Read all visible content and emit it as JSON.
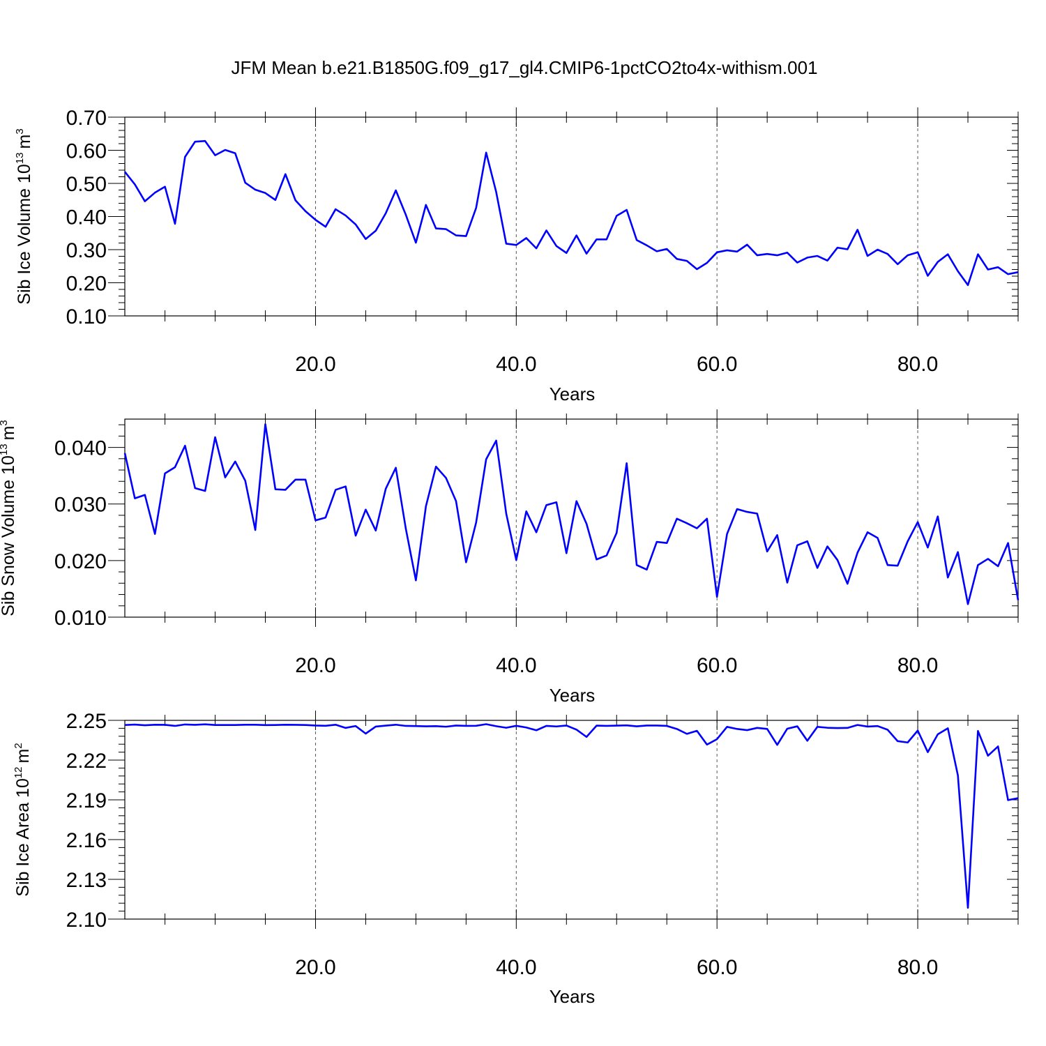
{
  "chart_data": [
    {
      "type": "line",
      "title": "JFM Mean b.e21.B1850G.f09_g17_gl4.CMIP6-1pctCO2to4x-withism.001",
      "xlabel": "Years",
      "ylabel": "Sib Ice Volume 10",
      "ylabel_exp": "13",
      "ylabel_unit": "m",
      "ylabel_unit_exp": "3",
      "xlim": [
        1,
        90
      ],
      "ylim": [
        0.1,
        0.7
      ],
      "xticks": [
        20,
        40,
        60,
        80
      ],
      "xtick_labels": [
        "20.0",
        "40.0",
        "60.0",
        "80.0"
      ],
      "yticks": [
        0.1,
        0.2,
        0.3,
        0.4,
        0.5,
        0.6,
        0.7
      ],
      "ytick_labels": [
        "0.10",
        "0.20",
        "0.30",
        "0.40",
        "0.50",
        "0.60",
        "0.70"
      ],
      "grid": "vertical-dashed",
      "line_color": "#0000ff",
      "x": [
        1,
        2,
        3,
        4,
        5,
        6,
        7,
        8,
        9,
        10,
        11,
        12,
        13,
        14,
        15,
        16,
        17,
        18,
        19,
        20,
        21,
        22,
        23,
        24,
        25,
        26,
        27,
        28,
        29,
        30,
        31,
        32,
        33,
        34,
        35,
        36,
        37,
        38,
        39,
        40,
        41,
        42,
        43,
        44,
        45,
        46,
        47,
        48,
        49,
        50,
        51,
        52,
        53,
        54,
        55,
        56,
        57,
        58,
        59,
        60,
        61,
        62,
        63,
        64,
        65,
        66,
        67,
        68,
        69,
        70,
        71,
        72,
        73,
        74,
        75,
        76,
        77,
        78,
        79,
        80,
        81,
        82,
        83,
        84,
        85,
        86,
        87,
        88,
        89,
        90
      ],
      "values": [
        0.535,
        0.497,
        0.446,
        0.472,
        0.49,
        0.378,
        0.58,
        0.626,
        0.628,
        0.585,
        0.601,
        0.591,
        0.502,
        0.481,
        0.471,
        0.45,
        0.528,
        0.449,
        0.416,
        0.39,
        0.369,
        0.422,
        0.403,
        0.376,
        0.332,
        0.357,
        0.41,
        0.479,
        0.405,
        0.321,
        0.435,
        0.364,
        0.362,
        0.343,
        0.341,
        0.426,
        0.593,
        0.474,
        0.318,
        0.314,
        0.335,
        0.304,
        0.358,
        0.311,
        0.29,
        0.343,
        0.288,
        0.331,
        0.331,
        0.402,
        0.42,
        0.329,
        0.313,
        0.295,
        0.302,
        0.272,
        0.266,
        0.241,
        0.26,
        0.292,
        0.298,
        0.294,
        0.315,
        0.283,
        0.287,
        0.283,
        0.291,
        0.261,
        0.276,
        0.281,
        0.267,
        0.306,
        0.301,
        0.36,
        0.281,
        0.3,
        0.287,
        0.256,
        0.283,
        0.292,
        0.221,
        0.263,
        0.286,
        0.235,
        0.193,
        0.286,
        0.24,
        0.247,
        0.226,
        0.232
      ]
    },
    {
      "type": "line",
      "xlabel": "Years",
      "ylabel": "Sib Snow Volume 10",
      "ylabel_exp": "13",
      "ylabel_unit": "m",
      "ylabel_unit_exp": "3",
      "xlim": [
        1,
        90
      ],
      "ylim": [
        0.01,
        0.045
      ],
      "xticks": [
        20,
        40,
        60,
        80
      ],
      "xtick_labels": [
        "20.0",
        "40.0",
        "60.0",
        "80.0"
      ],
      "yticks": [
        0.01,
        0.02,
        0.03,
        0.04
      ],
      "ytick_labels": [
        "0.010",
        "0.020",
        "0.030",
        "0.040"
      ],
      "grid": "vertical-dashed",
      "line_color": "#0000ff",
      "x": [
        1,
        2,
        3,
        4,
        5,
        6,
        7,
        8,
        9,
        10,
        11,
        12,
        13,
        14,
        15,
        16,
        17,
        18,
        19,
        20,
        21,
        22,
        23,
        24,
        25,
        26,
        27,
        28,
        29,
        30,
        31,
        32,
        33,
        34,
        35,
        36,
        37,
        38,
        39,
        40,
        41,
        42,
        43,
        44,
        45,
        46,
        47,
        48,
        49,
        50,
        51,
        52,
        53,
        54,
        55,
        56,
        57,
        58,
        59,
        60,
        61,
        62,
        63,
        64,
        65,
        66,
        67,
        68,
        69,
        70,
        71,
        72,
        73,
        74,
        75,
        76,
        77,
        78,
        79,
        80,
        81,
        82,
        83,
        84,
        85,
        86,
        87,
        88,
        89,
        90
      ],
      "values": [
        0.039,
        0.031,
        0.0316,
        0.0247,
        0.0354,
        0.0365,
        0.0403,
        0.0328,
        0.0323,
        0.0418,
        0.0347,
        0.0375,
        0.0341,
        0.0254,
        0.0441,
        0.0326,
        0.0325,
        0.0343,
        0.0343,
        0.0271,
        0.0276,
        0.0325,
        0.0331,
        0.0244,
        0.029,
        0.0253,
        0.0327,
        0.0364,
        0.0256,
        0.0165,
        0.0296,
        0.0366,
        0.0346,
        0.0305,
        0.0197,
        0.0267,
        0.0379,
        0.0412,
        0.0283,
        0.0201,
        0.0287,
        0.025,
        0.0298,
        0.0303,
        0.0213,
        0.0305,
        0.0265,
        0.0202,
        0.0209,
        0.0249,
        0.0372,
        0.0192,
        0.0184,
        0.0233,
        0.0231,
        0.0274,
        0.0266,
        0.0257,
        0.0274,
        0.0136,
        0.0247,
        0.0291,
        0.0286,
        0.0283,
        0.0216,
        0.0245,
        0.0161,
        0.0227,
        0.0234,
        0.0187,
        0.0225,
        0.0201,
        0.0159,
        0.0214,
        0.025,
        0.024,
        0.0192,
        0.0191,
        0.0234,
        0.0268,
        0.0223,
        0.0278,
        0.017,
        0.0215,
        0.0123,
        0.0192,
        0.0203,
        0.019,
        0.0231,
        0.013
      ]
    },
    {
      "type": "line",
      "xlabel": "Years",
      "ylabel": "Sib Ice Area 10",
      "ylabel_exp": "12",
      "ylabel_unit": "m",
      "ylabel_unit_exp": "2",
      "xlim": [
        1,
        90
      ],
      "ylim": [
        2.1,
        2.25
      ],
      "xticks": [
        20,
        40,
        60,
        80
      ],
      "xtick_labels": [
        "20.0",
        "40.0",
        "60.0",
        "80.0"
      ],
      "yticks": [
        2.1,
        2.13,
        2.16,
        2.19,
        2.22,
        2.25
      ],
      "ytick_labels": [
        "2.10",
        "2.13",
        "2.16",
        "2.19",
        "2.22",
        "2.25"
      ],
      "grid": "vertical-dashed",
      "line_color": "#0000ff",
      "x": [
        1,
        2,
        3,
        4,
        5,
        6,
        7,
        8,
        9,
        10,
        11,
        12,
        13,
        14,
        15,
        16,
        17,
        18,
        19,
        20,
        21,
        22,
        23,
        24,
        25,
        26,
        27,
        28,
        29,
        30,
        31,
        32,
        33,
        34,
        35,
        36,
        37,
        38,
        39,
        40,
        41,
        42,
        43,
        44,
        45,
        46,
        47,
        48,
        49,
        50,
        51,
        52,
        53,
        54,
        55,
        56,
        57,
        58,
        59,
        60,
        61,
        62,
        63,
        64,
        65,
        66,
        67,
        68,
        69,
        70,
        71,
        72,
        73,
        74,
        75,
        76,
        77,
        78,
        79,
        80,
        81,
        82,
        83,
        84,
        85,
        86,
        87,
        88,
        89,
        90
      ],
      "values": [
        2.2465,
        2.2468,
        2.2463,
        2.2467,
        2.2466,
        2.2458,
        2.2469,
        2.2466,
        2.247,
        2.2465,
        2.2465,
        2.2465,
        2.2467,
        2.2467,
        2.2464,
        2.2465,
        2.2467,
        2.2466,
        2.2465,
        2.2461,
        2.2459,
        2.2467,
        2.2443,
        2.2457,
        2.24,
        2.2453,
        2.246,
        2.2467,
        2.2458,
        2.2457,
        2.2455,
        2.2456,
        2.2452,
        2.2461,
        2.2458,
        2.2459,
        2.2471,
        2.2456,
        2.2444,
        2.2459,
        2.2446,
        2.2425,
        2.2458,
        2.2454,
        2.2461,
        2.243,
        2.2375,
        2.246,
        2.2458,
        2.246,
        2.2462,
        2.2455,
        2.2461,
        2.2461,
        2.2458,
        2.2435,
        2.2398,
        2.2421,
        2.2317,
        2.2358,
        2.2451,
        2.2435,
        2.2426,
        2.2443,
        2.2435,
        2.2315,
        2.2437,
        2.2455,
        2.2346,
        2.2451,
        2.2444,
        2.2442,
        2.2443,
        2.2465,
        2.2453,
        2.2457,
        2.2429,
        2.2343,
        2.2333,
        2.2423,
        2.226,
        2.2395,
        2.244,
        2.2085,
        2.1085,
        2.242,
        2.2233,
        2.2303,
        2.1898,
        2.1913
      ]
    }
  ]
}
